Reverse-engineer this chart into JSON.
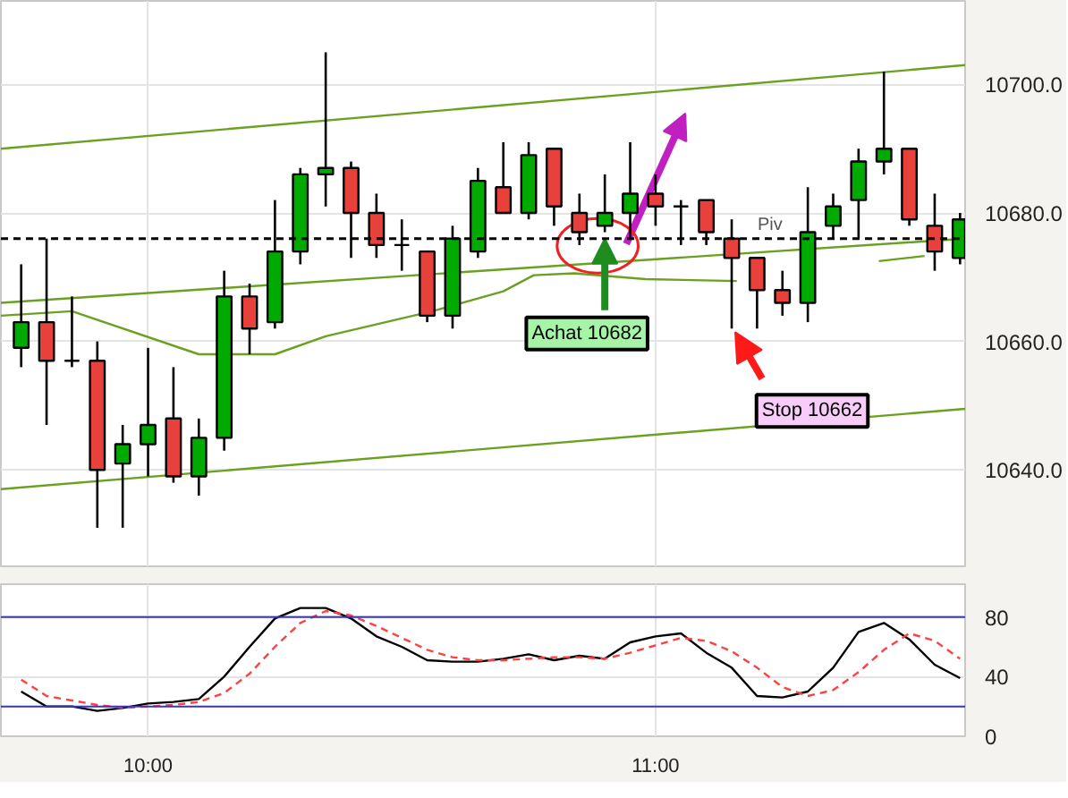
{
  "chart_data": [
    {
      "type": "candlestick",
      "x": [
        9.75,
        9.8,
        9.85,
        9.9,
        9.95,
        10,
        10.05,
        10.1,
        10.15,
        10.2,
        10.25,
        10.3,
        10.35,
        10.4,
        10.45,
        10.5,
        10.55,
        10.6,
        10.65,
        10.7,
        10.75,
        10.8,
        10.85,
        10.9,
        10.95,
        11,
        11.05,
        11.1,
        11.15,
        11.2,
        11.25,
        11.3,
        11.35,
        11.4,
        11.45,
        11.5,
        11.55,
        11.6
      ],
      "ohlc": [
        [
          10659,
          10672,
          10656,
          10663
        ],
        [
          10663,
          10676,
          10647,
          10657
        ],
        [
          10657,
          10667,
          10656,
          10657
        ],
        [
          10657,
          10660,
          10631,
          10640
        ],
        [
          10641,
          10647,
          10631,
          10644
        ],
        [
          10644,
          10659,
          10639,
          10647
        ],
        [
          10648,
          10656,
          10638,
          10639
        ],
        [
          10639,
          10648,
          10636,
          10645
        ],
        [
          10645,
          10671,
          10643,
          10667
        ],
        [
          10667,
          10669,
          10658,
          10662
        ],
        [
          10663,
          10682,
          10662,
          10674
        ],
        [
          10674,
          10687,
          10672,
          10686
        ],
        [
          10686,
          10705,
          10681,
          10687
        ],
        [
          10687,
          10688,
          10673,
          10680
        ],
        [
          10680,
          10683,
          10673,
          10675
        ],
        [
          10675,
          10679,
          10671,
          10675
        ],
        [
          10674,
          10674,
          10663,
          10664
        ],
        [
          10664,
          10678,
          10662,
          10676
        ],
        [
          10674,
          10687,
          10673,
          10685
        ],
        [
          10684,
          10691,
          10680,
          10680
        ],
        [
          10680,
          10691,
          10679,
          10689
        ],
        [
          10690,
          10690,
          10678,
          10681
        ],
        [
          10680,
          10683,
          10675,
          10677
        ],
        [
          10678,
          10686,
          10677,
          10680
        ],
        [
          10680,
          10691,
          10676,
          10683
        ],
        [
          10683,
          10686,
          10678,
          10681
        ],
        [
          10681,
          10682,
          10675,
          10681
        ],
        [
          10682,
          10682,
          10675,
          10677
        ],
        [
          10676,
          10679,
          10662,
          10673
        ],
        [
          10673,
          10673,
          10662,
          10668
        ],
        [
          10668,
          10671,
          10664,
          10666
        ],
        [
          10666,
          10684,
          10663,
          10677
        ],
        [
          10678,
          10683,
          10676,
          10681
        ],
        [
          10682,
          10690,
          10676,
          10688
        ],
        [
          10688,
          10702,
          10686,
          10690
        ],
        [
          10690,
          10690,
          10678,
          10679
        ],
        [
          10678,
          10683,
          10671,
          10674
        ],
        [
          10673,
          10680,
          10672,
          10679
        ]
      ],
      "colors": [
        "#00aa00",
        "#e8403a",
        "#000000",
        "#e8403a",
        "#00aa00",
        "#00aa00",
        "#e8403a",
        "#00aa00",
        "#00aa00",
        "#e8403a",
        "#00aa00",
        "#00aa00",
        "#00aa00",
        "#e8403a",
        "#e8403a",
        "#000000",
        "#e8403a",
        "#00aa00",
        "#00aa00",
        "#e8403a",
        "#00aa00",
        "#e8403a",
        "#e8403a",
        "#00aa00",
        "#00aa00",
        "#e8403a",
        "#000000",
        "#e8403a",
        "#e8403a",
        "#e8403a",
        "#e8403a",
        "#00aa00",
        "#00aa00",
        "#00aa00",
        "#00aa00",
        "#e8403a",
        "#e8403a",
        "#00aa00"
      ],
      "series": [
        {
          "type": "line",
          "color": "#6aa121",
          "x": [
            9.71,
            11.61
          ],
          "values": [
            10690,
            10703
          ]
        },
        {
          "type": "line",
          "color": "#6aa121",
          "x": [
            9.71,
            11.61
          ],
          "values": [
            10666,
            10676
          ]
        },
        {
          "type": "line",
          "color": "#6aa121",
          "x": [
            9.71,
            11.61
          ],
          "values": [
            10637,
            10649.5
          ]
        },
        {
          "type": "line",
          "color": "#6aa121",
          "x": [
            9.71,
            9.85,
            10.1,
            10.25,
            10.35,
            10.56,
            10.7,
            10.76,
            10.84,
            10.98,
            11.16,
            11.3,
            11.44,
            11.53
          ],
          "values": [
            10664,
            10664.7,
            10658,
            10658,
            10660.8,
            10664.7,
            10667.8,
            10670.3,
            10670.6,
            10669.7,
            10669.4,
            null,
            10672.5,
            10673.3
          ]
        }
      ],
      "xlim": [
        9.71,
        11.61
      ],
      "ylim": [
        10625,
        10713
      ],
      "yticks": [
        {
          "value": 10640,
          "label": "10640.0"
        },
        {
          "value": 10660,
          "label": "10660.0"
        },
        {
          "value": 10680,
          "label": "10680.0"
        },
        {
          "value": 10700,
          "label": "10700.0"
        }
      ],
      "tick_labels": "y",
      "grid": true,
      "ref_lines": [
        {
          "axis": "y",
          "value": 10676,
          "label": "Piv",
          "color": "#000000",
          "line_style": "dashed"
        }
      ],
      "annotations": [
        {
          "text": "Achat 10682",
          "x": 10.9,
          "y": 10676
        },
        {
          "text": "Stop 10662",
          "x": 11.15,
          "y": 10662
        }
      ]
    },
    {
      "type": "line",
      "x": [
        9.75,
        9.8,
        9.85,
        9.9,
        9.95,
        10,
        10.05,
        10.1,
        10.15,
        10.2,
        10.25,
        10.3,
        10.35,
        10.4,
        10.45,
        10.5,
        10.55,
        10.6,
        10.65,
        10.7,
        10.75,
        10.8,
        10.85,
        10.9,
        10.95,
        11,
        11.05,
        11.1,
        11.15,
        11.2,
        11.25,
        11.3,
        11.35,
        11.4,
        11.45,
        11.5,
        11.55,
        11.6
      ],
      "series": [
        {
          "color": "#000000",
          "line_style": "solid",
          "values": [
            30,
            20,
            20,
            17,
            19,
            22,
            23,
            25,
            40,
            60,
            79,
            86,
            86,
            79,
            67,
            60,
            51,
            50,
            50,
            52,
            55,
            51,
            54,
            52,
            63,
            67,
            69,
            56,
            46,
            27,
            26,
            30,
            46,
            70,
            76,
            65,
            48,
            39
          ]
        },
        {
          "color": "#ff4040",
          "line_style": "dashed",
          "values": [
            38,
            27,
            24,
            21,
            19,
            20,
            21,
            23,
            29,
            42,
            60,
            76,
            84,
            81,
            74,
            66,
            58,
            53,
            51,
            51,
            52,
            53,
            53,
            52,
            56,
            61,
            66,
            64,
            57,
            46,
            33,
            27,
            31,
            43,
            58,
            69,
            64,
            52
          ]
        }
      ],
      "xlim": [
        9.71,
        11.61
      ],
      "ylim": [
        0,
        102
      ],
      "xticks": [
        {
          "value": 10,
          "label": "10:00"
        },
        {
          "value": 11,
          "label": "11:00"
        }
      ],
      "yticks": [
        0,
        40,
        80
      ],
      "grid": true,
      "ref_lines": [
        {
          "axis": "y",
          "value": 80,
          "color": "#3333dd"
        },
        {
          "axis": "y",
          "value": 20,
          "color": "#3333dd"
        }
      ]
    }
  ]
}
